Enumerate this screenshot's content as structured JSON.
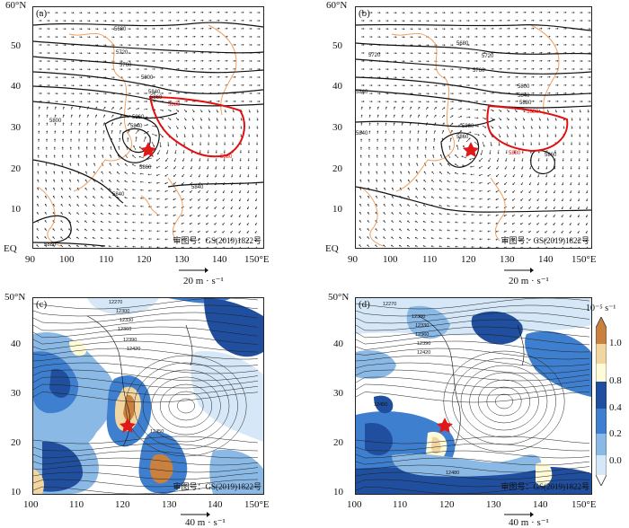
{
  "panels": [
    {
      "id": "a",
      "label": "(a)",
      "lat_ticks": [
        "60°N",
        "50",
        "40",
        "30",
        "20",
        "10",
        "EQ"
      ],
      "lon_ticks": [
        "90",
        "100",
        "110",
        "120",
        "130",
        "140",
        "150°E"
      ],
      "contour_labels": [
        "5680",
        "5720",
        "5760",
        "5800",
        "5840",
        "5860",
        "5880",
        "5880",
        "5840",
        "5800",
        "5860",
        "5840",
        "5860",
        "5840",
        "5880"
      ],
      "stamp": "审图号：GS(2019)1822号",
      "scale_text": "20  m · s⁻¹"
    },
    {
      "id": "b",
      "label": "(b)",
      "lat_ticks": [
        "60°N",
        "50",
        "40",
        "30",
        "20",
        "10",
        "EQ"
      ],
      "lon_ticks": [
        "90",
        "100",
        "110",
        "120",
        "130",
        "140",
        "150°E"
      ],
      "contour_labels": [
        "5680",
        "5720",
        "5720",
        "5760",
        "5800",
        "5840",
        "5880",
        "5840",
        "5860",
        "5840",
        "5860",
        "5880",
        "5880",
        "5860"
      ],
      "stamp": "审图号：GS(2019)1822号",
      "scale_text": "20  m · s⁻¹"
    },
    {
      "id": "c",
      "label": "(c)",
      "lat_ticks": [
        "50°N",
        "40",
        "30",
        "20",
        "10"
      ],
      "lon_ticks": [
        "100",
        "110",
        "120",
        "130",
        "140",
        "150°E"
      ],
      "contour_labels": [
        "12270",
        "12300",
        "12330",
        "12360",
        "12390",
        "12420",
        "12450"
      ],
      "stamp": "审图号：GS(2019)1822号",
      "scale_text": "40  m · s⁻¹"
    },
    {
      "id": "d",
      "label": "(d)",
      "lat_ticks": [
        "50°N",
        "40",
        "30",
        "20",
        "10"
      ],
      "lon_ticks": [
        "100",
        "110",
        "120",
        "130",
        "140",
        "150°E"
      ],
      "contour_labels": [
        "12270",
        "12300",
        "12330",
        "12360",
        "12390",
        "12420",
        "12450",
        "12480"
      ],
      "stamp": "审图号：GS(2019)1822号",
      "scale_text": "40  m · s⁻¹"
    }
  ],
  "colorbar": {
    "unit": "10⁻⁵ s⁻¹",
    "ticks": [
      "1.0",
      "0.8",
      "0.4",
      "0.2",
      "0.0"
    ],
    "colors": [
      "#c9813f",
      "#f2d6a2",
      "#fffbd8",
      "#1f4f9e",
      "#3f7fcf",
      "#8ab9e6",
      "#d6e8f7",
      "#ffffff"
    ]
  },
  "colors": {
    "contour": "#111111",
    "highlight_contour": "#e01010",
    "coastline": "#f0a060",
    "typhoon": "#e01818",
    "vort_dark": "#1f4f9e",
    "vort_mid": "#3f7fcf",
    "vort_light": "#8ab9e6",
    "vort_pale": "#d6e8f7",
    "vort_orange": "#c9813f",
    "vort_yellow": "#f2d6a2"
  }
}
